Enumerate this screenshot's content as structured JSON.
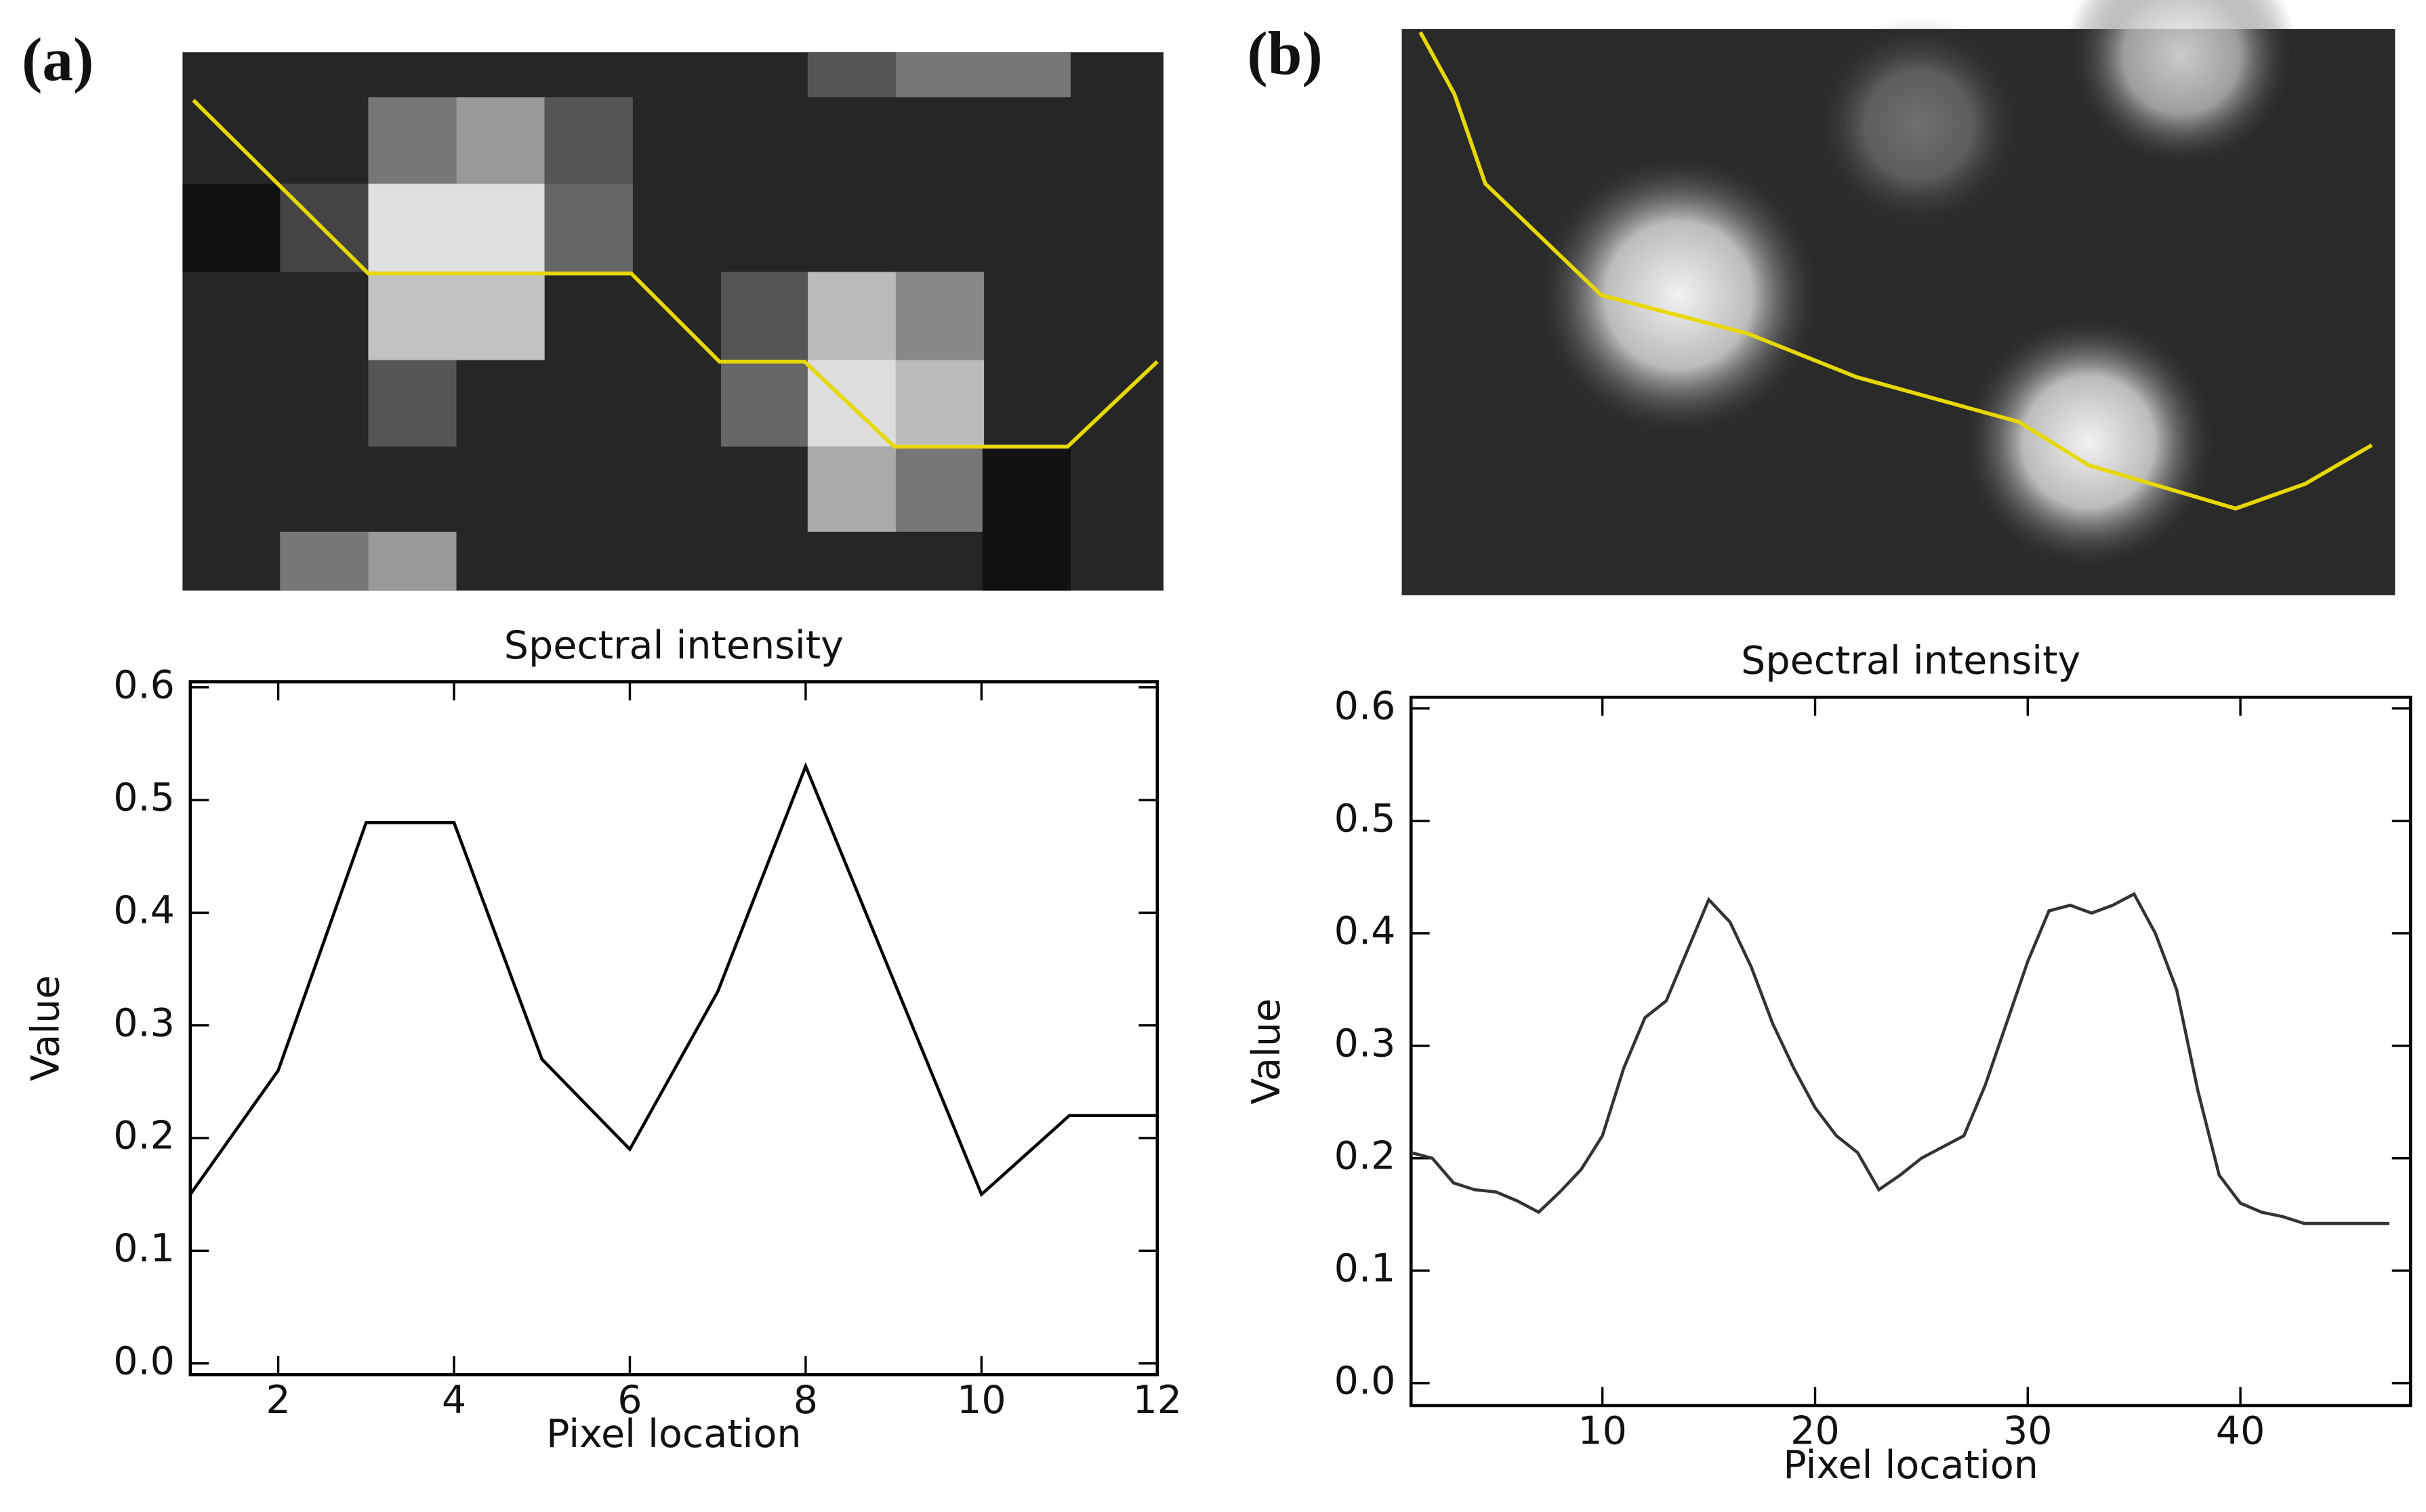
{
  "chart_data": [
    {
      "type": "line",
      "label": "(a)",
      "title": "Spectral intensity",
      "xlabel": "Pixel location",
      "ylabel": "Value",
      "x": [
        1,
        2,
        3,
        4,
        5,
        6,
        7,
        8,
        9,
        10,
        11,
        12
      ],
      "values": [
        0.15,
        0.26,
        0.48,
        0.48,
        0.27,
        0.19,
        0.33,
        0.53,
        0.34,
        0.15,
        0.22,
        0.22
      ],
      "color": "#000000",
      "xlim": [
        1,
        12
      ],
      "xticks": [
        2,
        4,
        6,
        8,
        10,
        12
      ],
      "ylim": [
        -0.01,
        0.605
      ],
      "yticks": [
        {
          "value": 0,
          "label": "0.0"
        },
        0.1,
        0.2,
        0.3,
        0.4,
        0.5,
        0.6
      ]
    },
    {
      "type": "line",
      "label": "(b)",
      "title": "Spectral intensity",
      "xlabel": "Pixel location",
      "ylabel": "Value",
      "x": [
        1,
        2,
        3,
        4,
        5,
        6,
        7,
        8,
        9,
        10,
        11,
        12,
        13,
        14,
        15,
        16,
        17,
        18,
        19,
        20,
        21,
        22,
        23,
        24,
        25,
        26,
        27,
        28,
        29,
        30,
        31,
        32,
        33,
        34,
        35,
        36,
        37,
        38,
        39,
        40,
        41,
        42,
        43,
        44,
        45,
        46,
        47
      ],
      "values": [
        0.205,
        0.2,
        0.178,
        0.172,
        0.17,
        0.162,
        0.152,
        0.17,
        0.19,
        0.22,
        0.28,
        0.325,
        0.34,
        0.385,
        0.43,
        0.41,
        0.37,
        0.32,
        0.28,
        0.245,
        0.22,
        0.205,
        0.172,
        0.185,
        0.2,
        0.21,
        0.22,
        0.265,
        0.32,
        0.375,
        0.42,
        0.425,
        0.418,
        0.425,
        0.435,
        0.4,
        0.35,
        0.26,
        0.185,
        0.16,
        0.152,
        0.148,
        0.142,
        0.142,
        0.142,
        0.142,
        0.142
      ],
      "color": "#333333",
      "xlim": [
        1,
        48
      ],
      "xticks": [
        10,
        20,
        30,
        40
      ],
      "ylim": [
        -0.02,
        0.61
      ],
      "yticks": [
        {
          "value": 0,
          "label": "0.0"
        },
        0.1,
        0.2,
        0.3,
        0.4,
        0.5,
        0.6
      ]
    }
  ]
}
